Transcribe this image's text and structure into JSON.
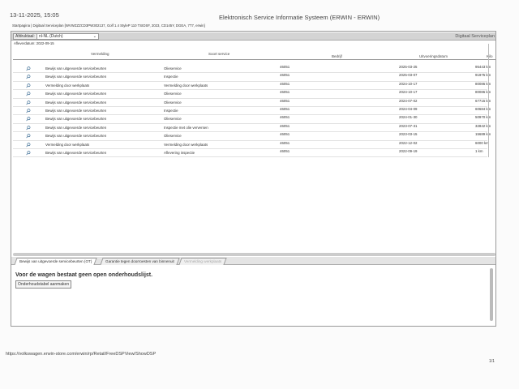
{
  "header": {
    "datetime": "13-11-2025, 15:05",
    "title": "Elektronisch Service Informatie Systeem (ERWIN - ERWIN)",
    "breadcrumb": "Startpagina | Digitaal Serviceplan [WVWZZZCD3PW302137, Golf 1.4 StyleP 110 TSIDSF, 2023, CD145Y, DGEA, 7T7, erwin]"
  },
  "toolbar": {
    "language_label": "Afdruktaal:",
    "language_value": "nl-NL (Dutch)",
    "section_label": "Digitaal Serviceplan"
  },
  "delivery_date": "Afleverdatum: 2022-09-15",
  "table": {
    "columns": [
      "Vermelding",
      "Soort service",
      "Bedrijf",
      "Uitvoeringsdatum",
      "Kilo"
    ],
    "rows": [
      [
        "Bewijs van uitgevoerde servicebeurten",
        "Olieservice",
        "46051",
        "2025-03-25",
        "95443 km"
      ],
      [
        "Bewijs van uitgevoerde servicebeurten",
        "Inspectie",
        "46051",
        "2025-03-07",
        "91975 km"
      ],
      [
        "Vermelding door werkplaats",
        "Vermelding door werkplaats",
        "46051",
        "2024-10-17",
        "80086 km"
      ],
      [
        "Bewijs van uitgevoerde servicebeurten",
        "Olieservice",
        "46051",
        "2024-10-17",
        "80086 km"
      ],
      [
        "Bewijs van uitgevoerde servicebeurten",
        "Olieservice",
        "46051",
        "2024-07-02",
        "67715 km"
      ],
      [
        "Bewijs van uitgevoerde servicebeurten",
        "Inspectie",
        "46051",
        "2024-04-09",
        "60684 km"
      ],
      [
        "Bewijs van uitgevoerde servicebeurten",
        "Olieservice",
        "46051",
        "2024-01-30",
        "50970 km"
      ],
      [
        "Bewijs van uitgevoerde servicebeurten",
        "Inspectie met olie verversen",
        "46051",
        "2023-07-31",
        "32842 km"
      ],
      [
        "Bewijs van uitgevoerde servicebeurten",
        "Olieservice",
        "46051",
        "2023-03-15",
        "15689 km"
      ],
      [
        "Vermelding door werkplaats",
        "Vermelding door werkplaats",
        "46051",
        "2022-12-02",
        "6000 km"
      ],
      [
        "Bewijs van uitgevoerde servicebeurten",
        "Aflevering inspectie",
        "46051",
        "2022-09-19",
        "1 km"
      ]
    ]
  },
  "tabs": [
    "Bewijs van uitgevoerde servicebeurten (OT)",
    "Garantie tegen doorroesten van binnenuit",
    "Vermelding werkplaats"
  ],
  "lower": {
    "message": "Voor de wagen bestaat geen open onderhoudslijst.",
    "button": "Onderhoudstabel aanmaken"
  },
  "footer": {
    "url": "https://volkswagen.erwin-store.com/erwin/rp/Retail/FreeDSPView/ShowDSP",
    "page": "1/1"
  }
}
